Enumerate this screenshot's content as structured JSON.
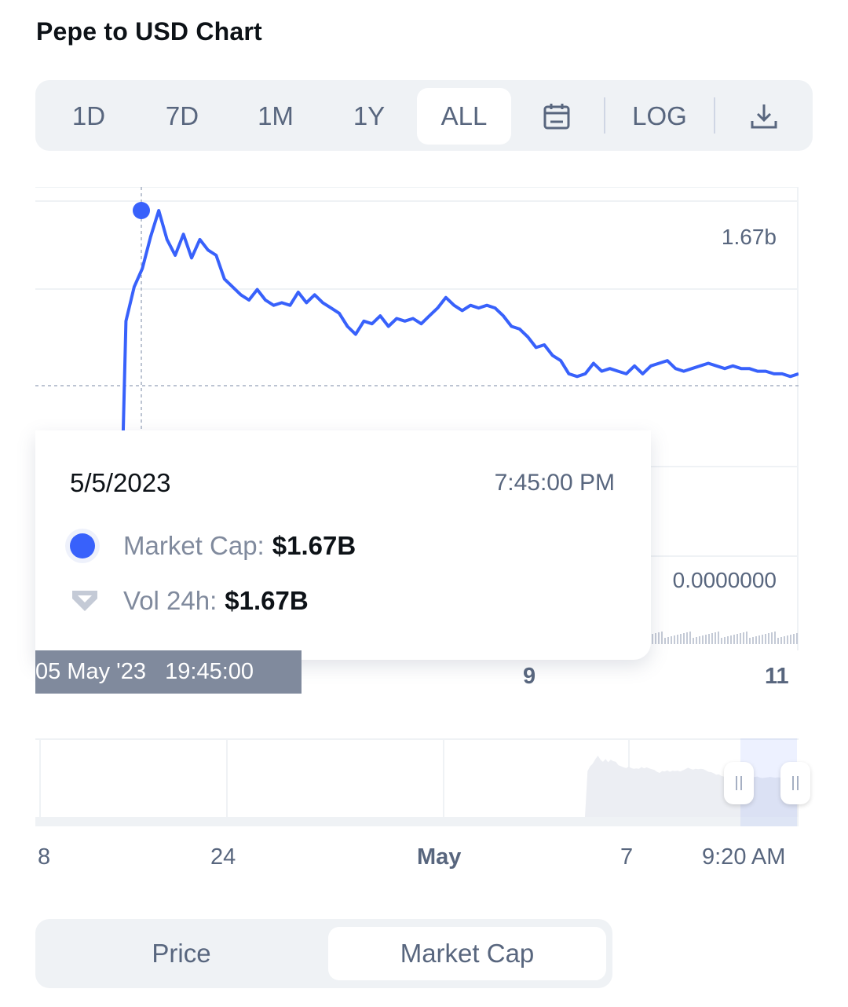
{
  "title": "Pepe to USD Chart",
  "toolbar": {
    "tabs": [
      "1D",
      "7D",
      "1M",
      "1Y",
      "ALL"
    ],
    "active_tab": "ALL",
    "calendar_icon": "calendar-icon",
    "log_label": "LOG",
    "download_icon": "download-icon"
  },
  "chart": {
    "y_label_top": "1.67b",
    "y_label_bottom": "0.0000000",
    "x_cursor_date": "05 May '23",
    "x_cursor_time": "19:45:00",
    "x_ticks": [
      "9",
      "11"
    ]
  },
  "tooltip": {
    "date": "5/5/2023",
    "time": "7:45:00 PM",
    "market_cap_label": "Market Cap:",
    "market_cap_value": "$1.67B",
    "vol_label": "Vol 24h:",
    "vol_value": "$1.67B"
  },
  "navigator": {
    "labels": [
      "8",
      "24",
      "May",
      "7",
      "9:20 AM"
    ]
  },
  "switch": {
    "options": [
      "Price",
      "Market Cap"
    ],
    "active": "Market Cap"
  },
  "colors": {
    "line": "#3861fb",
    "text_secondary": "#58667e",
    "toolbar_bg": "#eff2f5"
  },
  "chart_data": {
    "type": "line",
    "series": [
      {
        "name": "Market Cap",
        "values_billion": [
          0.0,
          1.25,
          1.38,
          1.45,
          1.57,
          1.67,
          1.56,
          1.5,
          1.58,
          1.49,
          1.56,
          1.52,
          1.5,
          1.41,
          1.38,
          1.35,
          1.33,
          1.37,
          1.33,
          1.31,
          1.32,
          1.31,
          1.36,
          1.32,
          1.35,
          1.32,
          1.3,
          1.28,
          1.23,
          1.2,
          1.25,
          1.24,
          1.27,
          1.23,
          1.26,
          1.25,
          1.26,
          1.24,
          1.27,
          1.3,
          1.34,
          1.31,
          1.29,
          1.31,
          1.3,
          1.31,
          1.3,
          1.27,
          1.23,
          1.22,
          1.19,
          1.15,
          1.16,
          1.12,
          1.1,
          1.05,
          1.04,
          1.05,
          1.09,
          1.06,
          1.07,
          1.06,
          1.05,
          1.08,
          1.05,
          1.08,
          1.09,
          1.1,
          1.07,
          1.06,
          1.07,
          1.08,
          1.09,
          1.08,
          1.07,
          1.08,
          1.07,
          1.07,
          1.06,
          1.06,
          1.05,
          1.05,
          1.04,
          1.05
        ]
      }
    ],
    "ylim_billion": [
      0,
      1.67
    ],
    "highlight": {
      "date": "5/5/2023",
      "time": "7:45:00 PM",
      "value": "$1.67B"
    }
  }
}
